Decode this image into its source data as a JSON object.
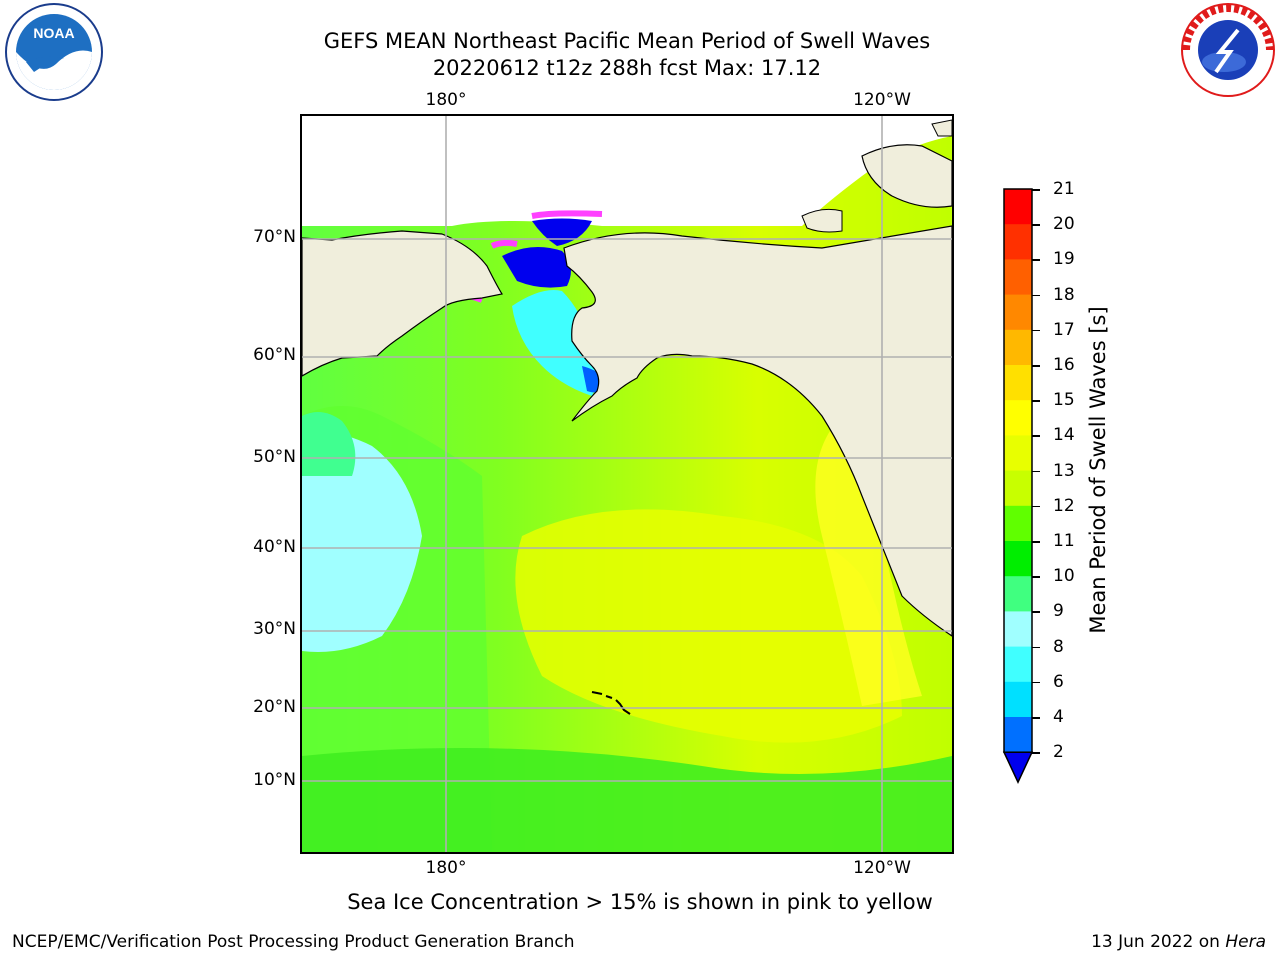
{
  "header": {
    "title_line1": "GEFS MEAN Northeast Pacific Mean Period of Swell Waves",
    "title_line2": "20220612 t12z 288h fcst   Max: 17.12"
  },
  "map": {
    "lon_ticks": [
      "180°",
      "120°W"
    ],
    "lat_ticks": [
      "70°N",
      "60°N",
      "50°N",
      "40°N",
      "30°N",
      "20°N",
      "10°N"
    ],
    "colors": {
      "land": "#f0eedc",
      "grid": "#b0b0b0",
      "coast": "#000000"
    }
  },
  "colorbar": {
    "label": "Mean Period of Swell Waves [s]",
    "tick_labels": [
      "21",
      "20",
      "19",
      "18",
      "17",
      "16",
      "15",
      "14",
      "13",
      "12",
      "11",
      "10",
      "9",
      "8",
      "6",
      "4",
      "2"
    ],
    "colors": [
      "#0000ee",
      "#0070ff",
      "#00e0ff",
      "#40ffff",
      "#a0ffff",
      "#40ff80",
      "#00ee00",
      "#60ff00",
      "#c8ff00",
      "#e8ff00",
      "#ffff00",
      "#ffe000",
      "#ffb800",
      "#ff8800",
      "#ff6000",
      "#ff3000",
      "#ff0000"
    ]
  },
  "caption": "Sea Ice Concentration > 15% is shown in pink to yellow",
  "footer": {
    "left": "NCEP/EMC/Verification Post Processing Product Generation Branch",
    "right_prefix": "13 Jun 2022 on ",
    "right_machine": "Hera"
  },
  "logos": {
    "noaa_text": "NOAA",
    "nws_ring_text": "NATIONAL WEATHER SERVICE"
  }
}
